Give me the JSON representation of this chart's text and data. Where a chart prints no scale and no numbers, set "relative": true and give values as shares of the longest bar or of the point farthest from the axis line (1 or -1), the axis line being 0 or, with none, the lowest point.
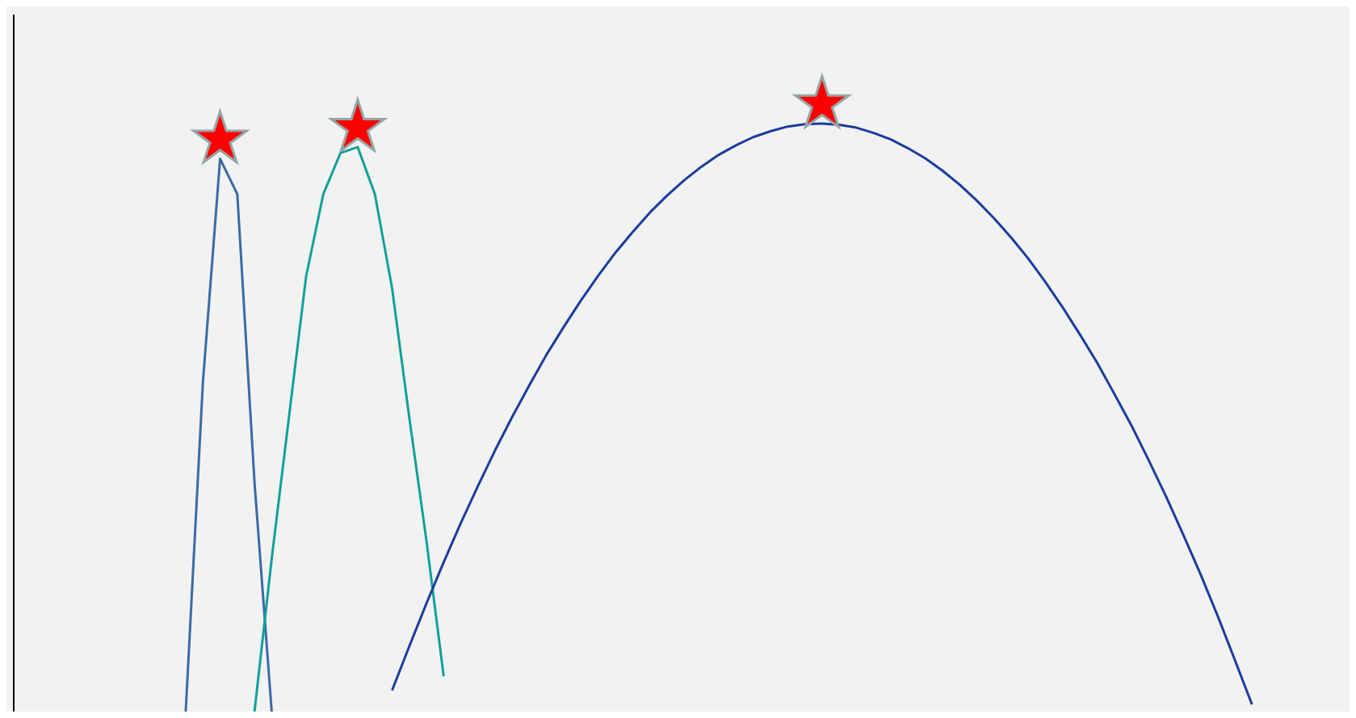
{
  "chart_data": {
    "type": "line",
    "relative": true,
    "categories": [
      null,
      null,
      null,
      null,
      null,
      null,
      null,
      null,
      null,
      null,
      null,
      null,
      null,
      null,
      null,
      null,
      null,
      null,
      null,
      null,
      null,
      null,
      null,
      null,
      null,
      null,
      null,
      null,
      null,
      null,
      null,
      null,
      null,
      null,
      null,
      null,
      null,
      null,
      null,
      null,
      null,
      null,
      null,
      null,
      null,
      null,
      null,
      null,
      null,
      null,
      null,
      null,
      null,
      null,
      null,
      null,
      null,
      null,
      null,
      null,
      null,
      null,
      null,
      null,
      null,
      null,
      null,
      null,
      null,
      null,
      null,
      null,
      null,
      null,
      null,
      null,
      null,
      null,
      null
    ],
    "series": [
      {
        "color": "#3a6aa6",
        "values": [
          null,
          null,
          null,
          null,
          null,
          null,
          null,
          null,
          null,
          null,
          0,
          0.56,
          0.94,
          0.88,
          0.39,
          0,
          null,
          null,
          null,
          null,
          null,
          null,
          null,
          null,
          null,
          null,
          null,
          null,
          null,
          null,
          null,
          null,
          null,
          null,
          null,
          null,
          null,
          null,
          null,
          null,
          null,
          null,
          null,
          null,
          null,
          null,
          null,
          null,
          null,
          null,
          null,
          null,
          null,
          null,
          null,
          null,
          null,
          null,
          null,
          null,
          null,
          null,
          null,
          null,
          null,
          null,
          null,
          null,
          null,
          null,
          null,
          null,
          null,
          null,
          null,
          null,
          null,
          null,
          null
        ]
      },
      {
        "color": "#12a09a",
        "values": [
          null,
          null,
          null,
          null,
          null,
          null,
          null,
          null,
          null,
          null,
          null,
          null,
          null,
          null,
          0,
          0.26,
          0.5,
          0.74,
          0.88,
          0.95,
          0.96,
          0.88,
          0.72,
          0.5,
          0.29,
          0.06,
          null,
          null,
          null,
          null,
          null,
          null,
          null,
          null,
          null,
          null,
          null,
          null,
          null,
          null,
          null,
          null,
          null,
          null,
          null,
          null,
          null,
          null,
          null,
          null,
          null,
          null,
          null,
          null,
          null,
          null,
          null,
          null,
          null,
          null,
          null,
          null,
          null,
          null,
          null,
          null,
          null,
          null,
          null,
          null,
          null,
          null,
          null,
          null,
          null,
          null,
          null,
          null,
          null
        ]
      },
      {
        "color": "#1a3d9e",
        "values": [
          null,
          null,
          null,
          null,
          null,
          null,
          null,
          null,
          null,
          null,
          null,
          null,
          null,
          null,
          null,
          null,
          null,
          null,
          null,
          null,
          null,
          null,
          0.036,
          0.111,
          0.184,
          0.254,
          0.321,
          0.384,
          0.445,
          0.502,
          0.556,
          0.608,
          0.655,
          0.7,
          0.742,
          0.781,
          0.816,
          0.849,
          0.878,
          0.904,
          0.927,
          0.947,
          0.963,
          0.977,
          0.987,
          0.995,
          0.999,
          1,
          0.998,
          0.993,
          0.984,
          0.973,
          0.958,
          0.941,
          0.92,
          0.896,
          0.869,
          0.839,
          0.806,
          0.77,
          0.73,
          0.687,
          0.641,
          0.593,
          0.54,
          0.486,
          0.427,
          0.366,
          0.301,
          0.234,
          0.163,
          0.088,
          0.012,
          null,
          null,
          null,
          null,
          null,
          null
        ]
      }
    ]
  }
}
